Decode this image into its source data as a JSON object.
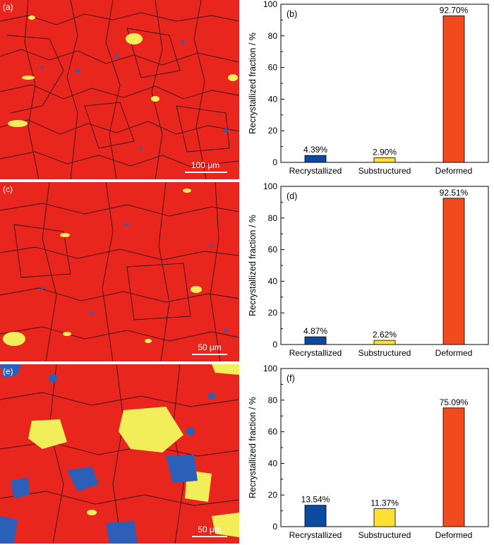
{
  "colors": {
    "recrystallized": "#0c4a9e",
    "substructured": "#ffe033",
    "deformed": "#f04a1e",
    "map_deformed": "#e8261e",
    "map_substructured": "#f2ee5a",
    "map_recrystallized": "#2b5fb8",
    "grain_boundary": "#3a0f1a"
  },
  "maps": [
    {
      "label": "(a)",
      "scale": "100 μm"
    },
    {
      "label": "(c)",
      "scale": "50 μm"
    },
    {
      "label": "(e)",
      "scale": "50 μm"
    }
  ],
  "chart_data": [
    {
      "type": "bar",
      "panel_label": "(b)",
      "categories": [
        "Recrystallized",
        "Substructured",
        "Deformed"
      ],
      "values": [
        4.39,
        2.9,
        92.7
      ],
      "data_labels": [
        "4.39%",
        "2.90%",
        "92.70%"
      ],
      "ylabel": "Recrystallized fraction / %",
      "ylim": [
        0,
        100
      ],
      "yticks": [
        "0",
        "20",
        "40",
        "60",
        "80",
        "100"
      ],
      "grid": false
    },
    {
      "type": "bar",
      "panel_label": "(d)",
      "categories": [
        "Recrystallized",
        "Substructured",
        "Deformed"
      ],
      "values": [
        4.87,
        2.62,
        92.51
      ],
      "data_labels": [
        "4.87%",
        "2.62%",
        "92.51%"
      ],
      "ylabel": "Recrystallized fraction / %",
      "ylim": [
        0,
        100
      ],
      "yticks": [
        "0",
        "20",
        "40",
        "60",
        "80",
        "100"
      ],
      "grid": false
    },
    {
      "type": "bar",
      "panel_label": "(f)",
      "categories": [
        "Recrystallized",
        "Substructured",
        "Deformed"
      ],
      "values": [
        13.54,
        11.37,
        75.09
      ],
      "data_labels": [
        "13.54%",
        "11.37%",
        "75.09%"
      ],
      "ylabel": "Recrystallized fraction / %",
      "ylim": [
        0,
        100
      ],
      "yticks": [
        "0",
        "20",
        "40",
        "60",
        "80",
        "100"
      ],
      "grid": false
    }
  ]
}
